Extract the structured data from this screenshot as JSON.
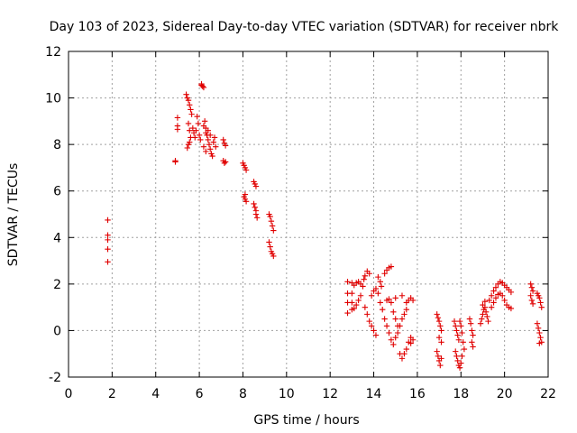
{
  "chart_data": {
    "type": "scatter",
    "title": "Day 103 of 2023, Sidereal Day-to-day VTEC variation (SDTVAR) for receiver nbrk",
    "xlabel": "GPS time / hours",
    "ylabel": "SDTVAR / TECUs",
    "xlim": [
      0,
      22
    ],
    "ylim": [
      -2,
      12
    ],
    "xticks": [
      "0",
      "2",
      "4",
      "6",
      "8",
      "10",
      "12",
      "14",
      "16",
      "18",
      "20",
      "22"
    ],
    "yticks": [
      "-2",
      "0",
      "2",
      "4",
      "6",
      "8",
      "10",
      "12"
    ],
    "grid": true,
    "marker": "plus",
    "color": "#e00000",
    "series": [
      {
        "name": "SDTVAR",
        "points": [
          [
            1.8,
            4.75
          ],
          [
            1.8,
            4.1
          ],
          [
            1.8,
            3.9
          ],
          [
            1.8,
            3.5
          ],
          [
            1.8,
            2.95
          ],
          [
            4.9,
            7.3
          ],
          [
            4.9,
            7.25
          ],
          [
            5.0,
            9.15
          ],
          [
            5.0,
            8.8
          ],
          [
            5.0,
            8.65
          ],
          [
            5.4,
            10.15
          ],
          [
            5.45,
            10.0
          ],
          [
            5.5,
            9.9
          ],
          [
            5.55,
            9.7
          ],
          [
            5.6,
            9.5
          ],
          [
            5.65,
            9.3
          ],
          [
            5.5,
            8.9
          ],
          [
            5.55,
            8.6
          ],
          [
            5.6,
            8.3
          ],
          [
            5.5,
            8.0
          ],
          [
            5.45,
            7.85
          ],
          [
            5.55,
            8.1
          ],
          [
            5.7,
            8.7
          ],
          [
            5.75,
            8.5
          ],
          [
            5.8,
            8.3
          ],
          [
            5.85,
            8.6
          ],
          [
            5.9,
            9.2
          ],
          [
            5.95,
            8.9
          ],
          [
            6.0,
            8.4
          ],
          [
            6.05,
            8.2
          ],
          [
            6.1,
            10.55
          ],
          [
            6.15,
            10.5
          ],
          [
            6.2,
            10.45
          ],
          [
            6.1,
            10.6
          ],
          [
            6.2,
            8.8
          ],
          [
            6.25,
            9.0
          ],
          [
            6.3,
            8.7
          ],
          [
            6.35,
            8.4
          ],
          [
            6.4,
            8.2
          ],
          [
            6.45,
            8.0
          ],
          [
            6.5,
            7.8
          ],
          [
            6.55,
            7.6
          ],
          [
            6.6,
            7.5
          ],
          [
            6.65,
            8.1
          ],
          [
            6.7,
            8.3
          ],
          [
            6.75,
            7.9
          ],
          [
            6.3,
            8.5
          ],
          [
            6.4,
            8.6
          ],
          [
            6.5,
            8.4
          ],
          [
            6.2,
            7.9
          ],
          [
            6.3,
            7.7
          ],
          [
            7.1,
            8.2
          ],
          [
            7.15,
            8.05
          ],
          [
            7.2,
            7.95
          ],
          [
            7.1,
            7.3
          ],
          [
            7.15,
            7.2
          ],
          [
            7.2,
            7.25
          ],
          [
            8.0,
            7.2
          ],
          [
            8.05,
            7.1
          ],
          [
            8.1,
            7.0
          ],
          [
            8.15,
            6.9
          ],
          [
            8.1,
            5.85
          ],
          [
            8.05,
            5.75
          ],
          [
            8.1,
            5.65
          ],
          [
            8.15,
            5.55
          ],
          [
            8.5,
            6.4
          ],
          [
            8.55,
            6.3
          ],
          [
            8.6,
            6.2
          ],
          [
            8.5,
            5.45
          ],
          [
            8.55,
            5.3
          ],
          [
            8.6,
            5.15
          ],
          [
            8.6,
            5.0
          ],
          [
            8.65,
            4.85
          ],
          [
            9.2,
            5.0
          ],
          [
            9.25,
            4.9
          ],
          [
            9.3,
            4.7
          ],
          [
            9.35,
            4.5
          ],
          [
            9.4,
            4.3
          ],
          [
            9.2,
            3.8
          ],
          [
            9.25,
            3.6
          ],
          [
            9.3,
            3.4
          ],
          [
            9.35,
            3.3
          ],
          [
            9.4,
            3.2
          ],
          [
            12.8,
            2.1
          ],
          [
            12.8,
            1.6
          ],
          [
            12.8,
            1.2
          ],
          [
            12.8,
            0.75
          ],
          [
            13.0,
            2.05
          ],
          [
            13.0,
            1.6
          ],
          [
            13.0,
            1.2
          ],
          [
            13.0,
            0.9
          ],
          [
            13.1,
            1.95
          ],
          [
            13.2,
            2.05
          ],
          [
            13.3,
            2.1
          ],
          [
            13.4,
            2.0
          ],
          [
            13.1,
            0.95
          ],
          [
            13.2,
            1.1
          ],
          [
            13.3,
            1.3
          ],
          [
            13.4,
            1.5
          ],
          [
            13.5,
            1.9
          ],
          [
            13.55,
            2.2
          ],
          [
            13.6,
            2.35
          ],
          [
            13.7,
            2.55
          ],
          [
            13.8,
            2.45
          ],
          [
            13.6,
            1.0
          ],
          [
            13.7,
            0.7
          ],
          [
            13.8,
            0.4
          ],
          [
            13.9,
            0.2
          ],
          [
            14.0,
            0.0
          ],
          [
            14.1,
            -0.2
          ],
          [
            13.9,
            1.5
          ],
          [
            14.0,
            1.7
          ],
          [
            14.1,
            1.8
          ],
          [
            14.2,
            1.6
          ],
          [
            14.3,
            1.2
          ],
          [
            14.4,
            0.9
          ],
          [
            14.2,
            2.3
          ],
          [
            14.3,
            2.1
          ],
          [
            14.35,
            1.9
          ],
          [
            14.5,
            2.45
          ],
          [
            14.6,
            2.6
          ],
          [
            14.7,
            2.7
          ],
          [
            14.8,
            2.75
          ],
          [
            14.5,
            0.5
          ],
          [
            14.6,
            0.2
          ],
          [
            14.7,
            -0.1
          ],
          [
            14.8,
            -0.4
          ],
          [
            14.9,
            -0.6
          ],
          [
            14.6,
            1.3
          ],
          [
            14.7,
            1.35
          ],
          [
            14.8,
            1.2
          ],
          [
            14.9,
            0.8
          ],
          [
            15.0,
            0.5
          ],
          [
            15.1,
            0.2
          ],
          [
            15.0,
            -0.3
          ],
          [
            15.1,
            -0.1
          ],
          [
            15.2,
            0.2
          ],
          [
            15.3,
            0.5
          ],
          [
            15.4,
            0.7
          ],
          [
            15.5,
            0.9
          ],
          [
            15.2,
            -1.0
          ],
          [
            15.3,
            -1.2
          ],
          [
            15.4,
            -1.0
          ],
          [
            15.5,
            -0.8
          ],
          [
            15.6,
            -0.5
          ],
          [
            15.7,
            -0.3
          ],
          [
            15.5,
            1.2
          ],
          [
            15.6,
            1.3
          ],
          [
            15.7,
            1.4
          ],
          [
            15.8,
            1.3
          ],
          [
            15.0,
            1.4
          ],
          [
            15.3,
            1.5
          ],
          [
            15.8,
            -0.4
          ],
          [
            15.7,
            -0.55
          ],
          [
            16.9,
            0.7
          ],
          [
            16.95,
            0.55
          ],
          [
            17.0,
            0.4
          ],
          [
            17.05,
            0.2
          ],
          [
            17.1,
            0.0
          ],
          [
            17.0,
            -0.3
          ],
          [
            17.1,
            -0.5
          ],
          [
            16.9,
            -0.9
          ],
          [
            16.95,
            -1.1
          ],
          [
            17.0,
            -1.3
          ],
          [
            17.05,
            -1.5
          ],
          [
            17.1,
            -1.2
          ],
          [
            17.7,
            0.4
          ],
          [
            17.75,
            0.2
          ],
          [
            17.8,
            0.0
          ],
          [
            17.85,
            -0.2
          ],
          [
            17.9,
            -0.4
          ],
          [
            17.75,
            -0.9
          ],
          [
            17.8,
            -1.1
          ],
          [
            17.85,
            -1.3
          ],
          [
            17.9,
            -1.5
          ],
          [
            17.95,
            -1.6
          ],
          [
            18.0,
            -1.4
          ],
          [
            18.05,
            -1.1
          ],
          [
            17.95,
            0.4
          ],
          [
            18.0,
            0.2
          ],
          [
            18.05,
            -0.1
          ],
          [
            18.1,
            -0.5
          ],
          [
            18.15,
            -0.8
          ],
          [
            18.4,
            0.5
          ],
          [
            18.45,
            0.3
          ],
          [
            18.5,
            0.0
          ],
          [
            18.55,
            -0.2
          ],
          [
            18.5,
            -0.5
          ],
          [
            18.55,
            -0.7
          ],
          [
            18.9,
            0.3
          ],
          [
            18.95,
            0.5
          ],
          [
            19.0,
            0.7
          ],
          [
            19.05,
            0.9
          ],
          [
            19.1,
            1.0
          ],
          [
            19.15,
            0.8
          ],
          [
            19.2,
            0.6
          ],
          [
            19.25,
            0.4
          ],
          [
            19.0,
            1.1
          ],
          [
            19.1,
            1.25
          ],
          [
            19.3,
            1.3
          ],
          [
            19.4,
            1.5
          ],
          [
            19.5,
            1.7
          ],
          [
            19.6,
            1.85
          ],
          [
            19.7,
            2.0
          ],
          [
            19.8,
            2.1
          ],
          [
            19.9,
            2.05
          ],
          [
            20.0,
            1.95
          ],
          [
            20.1,
            1.85
          ],
          [
            20.2,
            1.75
          ],
          [
            20.3,
            1.65
          ],
          [
            19.4,
            1.0
          ],
          [
            19.5,
            1.2
          ],
          [
            19.6,
            1.4
          ],
          [
            19.7,
            1.55
          ],
          [
            19.8,
            1.6
          ],
          [
            19.9,
            1.5
          ],
          [
            20.0,
            1.3
          ],
          [
            20.1,
            1.1
          ],
          [
            20.2,
            1.0
          ],
          [
            20.3,
            0.95
          ],
          [
            21.2,
            2.0
          ],
          [
            21.25,
            1.85
          ],
          [
            21.3,
            1.7
          ],
          [
            21.2,
            1.5
          ],
          [
            21.25,
            1.3
          ],
          [
            21.3,
            1.15
          ],
          [
            21.5,
            1.6
          ],
          [
            21.55,
            1.5
          ],
          [
            21.6,
            1.4
          ],
          [
            21.65,
            1.2
          ],
          [
            21.7,
            1.0
          ],
          [
            21.5,
            0.3
          ],
          [
            21.55,
            0.1
          ],
          [
            21.6,
            -0.1
          ],
          [
            21.65,
            -0.3
          ],
          [
            21.7,
            -0.5
          ],
          [
            21.6,
            -0.55
          ]
        ]
      }
    ]
  }
}
